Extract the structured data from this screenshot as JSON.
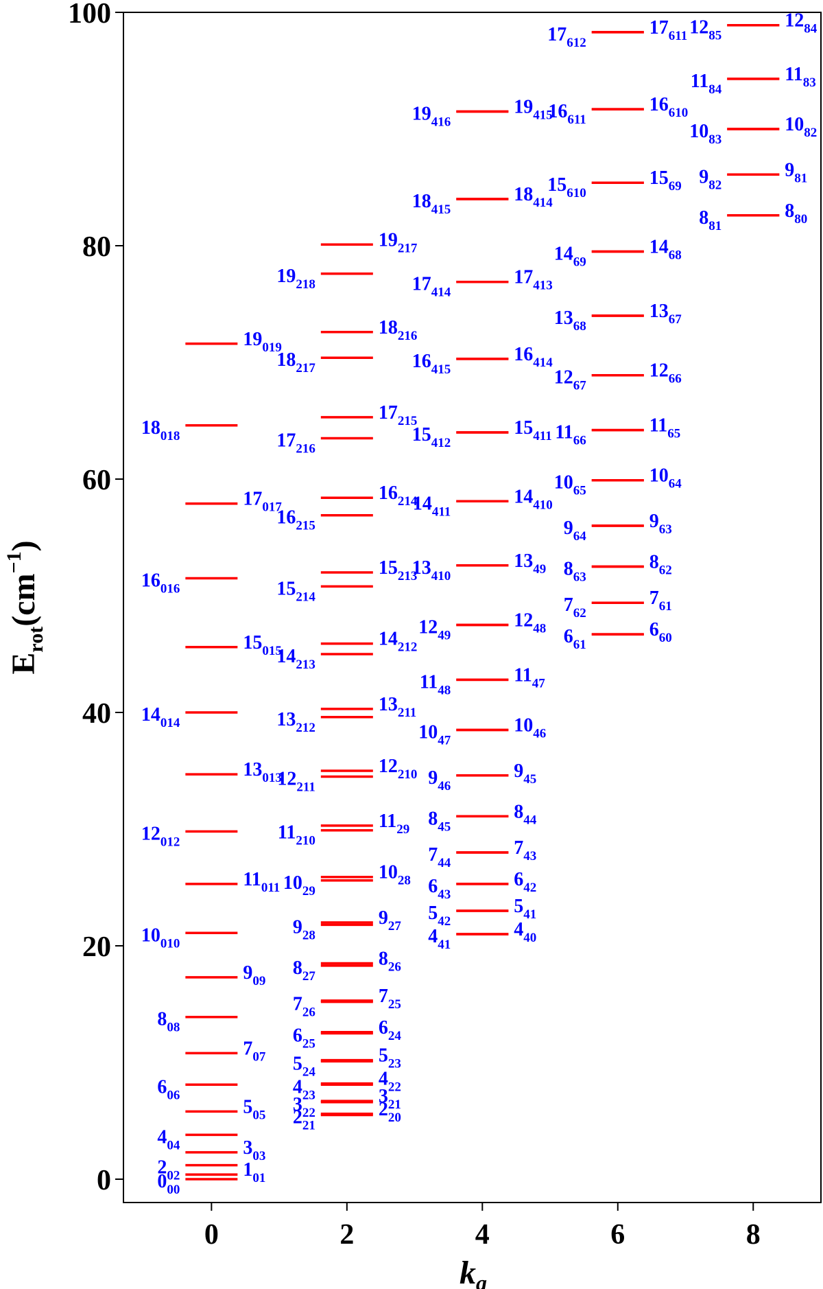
{
  "chart_data": {
    "type": "scatter",
    "xlabel": "k",
    "xlabel_sub": "a",
    "ylabel": "E",
    "ylabel_sub": "rot",
    "ylabel_units": "(cm",
    "ylabel_sup": "−1",
    "ylabel_close": ")",
    "xlim": [
      -1.3,
      9.0
    ],
    "ylim": [
      -2,
      100
    ],
    "xticks": [
      0,
      2,
      4,
      6,
      8
    ],
    "xtick_labels": [
      "0",
      "2",
      "4",
      "6",
      "8"
    ],
    "yticks": [
      0,
      20,
      40,
      60,
      80,
      100
    ],
    "ytick_labels": [
      "0",
      "20",
      "40",
      "60",
      "80",
      "100"
    ],
    "colors": {
      "level": "#ff0000",
      "label": "#0000ff",
      "axis": "#000000"
    },
    "levels": [
      {
        "x": 0,
        "E": 0.0,
        "J": "0",
        "sub": "00",
        "side": "left"
      },
      {
        "x": 0,
        "E": 0.4,
        "J": "1",
        "sub": "01",
        "side": "right"
      },
      {
        "x": 0,
        "E": 1.2,
        "J": "2",
        "sub": "02",
        "side": "left"
      },
      {
        "x": 0,
        "E": 2.3,
        "J": "3",
        "sub": "03",
        "side": "right"
      },
      {
        "x": 0,
        "E": 3.8,
        "J": "4",
        "sub": "04",
        "side": "left"
      },
      {
        "x": 0,
        "E": 5.8,
        "J": "5",
        "sub": "05",
        "side": "right"
      },
      {
        "x": 0,
        "E": 8.1,
        "J": "6",
        "sub": "06",
        "side": "left"
      },
      {
        "x": 0,
        "E": 10.8,
        "J": "7",
        "sub": "07",
        "side": "right"
      },
      {
        "x": 0,
        "E": 13.9,
        "J": "8",
        "sub": "08",
        "side": "left"
      },
      {
        "x": 0,
        "E": 17.3,
        "J": "9",
        "sub": "09",
        "side": "right"
      },
      {
        "x": 0,
        "E": 21.1,
        "J": "10",
        "sub": "010",
        "side": "left"
      },
      {
        "x": 0,
        "E": 25.3,
        "J": "11",
        "sub": "011",
        "side": "right"
      },
      {
        "x": 0,
        "E": 29.8,
        "J": "12",
        "sub": "012",
        "side": "left"
      },
      {
        "x": 0,
        "E": 34.7,
        "J": "13",
        "sub": "013",
        "side": "right"
      },
      {
        "x": 0,
        "E": 40.0,
        "J": "14",
        "sub": "014",
        "side": "left"
      },
      {
        "x": 0,
        "E": 45.6,
        "J": "15",
        "sub": "015",
        "side": "right"
      },
      {
        "x": 0,
        "E": 51.5,
        "J": "16",
        "sub": "016",
        "side": "left"
      },
      {
        "x": 0,
        "E": 57.9,
        "J": "17",
        "sub": "017",
        "side": "right"
      },
      {
        "x": 0,
        "E": 64.6,
        "J": "18",
        "sub": "018",
        "side": "left"
      },
      {
        "x": 0,
        "E": 71.6,
        "J": "19",
        "sub": "019",
        "side": "right"
      },
      {
        "x": 2,
        "E": 5.5,
        "J": "2",
        "sub": "21",
        "side": "left"
      },
      {
        "x": 2,
        "E": 5.6,
        "J": "2",
        "sub": "20",
        "side": "right"
      },
      {
        "x": 2,
        "E": 6.6,
        "J": "3",
        "sub": "22",
        "side": "left"
      },
      {
        "x": 2,
        "E": 6.7,
        "J": "3",
        "sub": "21",
        "side": "right"
      },
      {
        "x": 2,
        "E": 8.1,
        "J": "4",
        "sub": "23",
        "side": "left"
      },
      {
        "x": 2,
        "E": 8.2,
        "J": "4",
        "sub": "22",
        "side": "right"
      },
      {
        "x": 2,
        "E": 10.1,
        "J": "5",
        "sub": "24",
        "side": "left"
      },
      {
        "x": 2,
        "E": 10.2,
        "J": "5",
        "sub": "23",
        "side": "right"
      },
      {
        "x": 2,
        "E": 12.5,
        "J": "6",
        "sub": "25",
        "side": "left"
      },
      {
        "x": 2,
        "E": 12.6,
        "J": "6",
        "sub": "24",
        "side": "right"
      },
      {
        "x": 2,
        "E": 15.2,
        "J": "7",
        "sub": "26",
        "side": "left"
      },
      {
        "x": 2,
        "E": 15.3,
        "J": "7",
        "sub": "25",
        "side": "right"
      },
      {
        "x": 2,
        "E": 18.3,
        "J": "8",
        "sub": "27",
        "side": "left"
      },
      {
        "x": 2,
        "E": 18.5,
        "J": "8",
        "sub": "26",
        "side": "right"
      },
      {
        "x": 2,
        "E": 21.8,
        "J": "9",
        "sub": "28",
        "side": "left"
      },
      {
        "x": 2,
        "E": 22.0,
        "J": "9",
        "sub": "27",
        "side": "right"
      },
      {
        "x": 2,
        "E": 25.6,
        "J": "10",
        "sub": "29",
        "side": "left"
      },
      {
        "x": 2,
        "E": 25.9,
        "J": "10",
        "sub": "28",
        "side": "right"
      },
      {
        "x": 2,
        "E": 29.9,
        "J": "11",
        "sub": "210",
        "side": "left"
      },
      {
        "x": 2,
        "E": 30.3,
        "J": "11",
        "sub": "29",
        "side": "right"
      },
      {
        "x": 2,
        "E": 34.5,
        "J": "12",
        "sub": "211",
        "side": "left"
      },
      {
        "x": 2,
        "E": 35.0,
        "J": "12",
        "sub": "210",
        "side": "right"
      },
      {
        "x": 2,
        "E": 39.6,
        "J": "13",
        "sub": "212",
        "side": "left"
      },
      {
        "x": 2,
        "E": 40.3,
        "J": "13",
        "sub": "211",
        "side": "right"
      },
      {
        "x": 2,
        "E": 45.0,
        "J": "14",
        "sub": "213",
        "side": "left"
      },
      {
        "x": 2,
        "E": 45.9,
        "J": "14",
        "sub": "212",
        "side": "right"
      },
      {
        "x": 2,
        "E": 50.8,
        "J": "15",
        "sub": "214",
        "side": "left"
      },
      {
        "x": 2,
        "E": 52.0,
        "J": "15",
        "sub": "213",
        "side": "right"
      },
      {
        "x": 2,
        "E": 56.9,
        "J": "16",
        "sub": "215",
        "side": "left"
      },
      {
        "x": 2,
        "E": 58.4,
        "J": "16",
        "sub": "214",
        "side": "right"
      },
      {
        "x": 2,
        "E": 63.5,
        "J": "17",
        "sub": "216",
        "side": "left"
      },
      {
        "x": 2,
        "E": 65.3,
        "J": "17",
        "sub": "215",
        "side": "right"
      },
      {
        "x": 2,
        "E": 70.4,
        "J": "18",
        "sub": "217",
        "side": "left"
      },
      {
        "x": 2,
        "E": 72.6,
        "J": "18",
        "sub": "216",
        "side": "right"
      },
      {
        "x": 2,
        "E": 77.6,
        "J": "19",
        "sub": "218",
        "side": "left"
      },
      {
        "x": 2,
        "E": 80.1,
        "J": "19",
        "sub": "217",
        "side": "right"
      },
      {
        "x": 4,
        "E": 21.0,
        "J": "4",
        "sub": "41",
        "side": "left"
      },
      {
        "x": 4,
        "E": 21.0,
        "J": "4",
        "sub": "40",
        "side": "right"
      },
      {
        "x": 4,
        "E": 23.0,
        "J": "5",
        "sub": "42",
        "side": "left"
      },
      {
        "x": 4,
        "E": 23.0,
        "J": "5",
        "sub": "41",
        "side": "right"
      },
      {
        "x": 4,
        "E": 25.3,
        "J": "6",
        "sub": "43",
        "side": "left"
      },
      {
        "x": 4,
        "E": 25.3,
        "J": "6",
        "sub": "42",
        "side": "right"
      },
      {
        "x": 4,
        "E": 28.0,
        "J": "7",
        "sub": "44",
        "side": "left"
      },
      {
        "x": 4,
        "E": 28.0,
        "J": "7",
        "sub": "43",
        "side": "right"
      },
      {
        "x": 4,
        "E": 31.1,
        "J": "8",
        "sub": "45",
        "side": "left"
      },
      {
        "x": 4,
        "E": 31.1,
        "J": "8",
        "sub": "44",
        "side": "right"
      },
      {
        "x": 4,
        "E": 34.6,
        "J": "9",
        "sub": "46",
        "side": "left"
      },
      {
        "x": 4,
        "E": 34.6,
        "J": "9",
        "sub": "45",
        "side": "right"
      },
      {
        "x": 4,
        "E": 38.5,
        "J": "10",
        "sub": "47",
        "side": "left"
      },
      {
        "x": 4,
        "E": 38.5,
        "J": "10",
        "sub": "46",
        "side": "right"
      },
      {
        "x": 4,
        "E": 42.8,
        "J": "11",
        "sub": "48",
        "side": "left"
      },
      {
        "x": 4,
        "E": 42.8,
        "J": "11",
        "sub": "47",
        "side": "right"
      },
      {
        "x": 4,
        "E": 47.5,
        "J": "12",
        "sub": "49",
        "side": "left"
      },
      {
        "x": 4,
        "E": 47.5,
        "J": "12",
        "sub": "48",
        "side": "right"
      },
      {
        "x": 4,
        "E": 52.6,
        "J": "13",
        "sub": "410",
        "side": "left"
      },
      {
        "x": 4,
        "E": 52.6,
        "J": "13",
        "sub": "49",
        "side": "right"
      },
      {
        "x": 4,
        "E": 58.1,
        "J": "14",
        "sub": "411",
        "side": "left"
      },
      {
        "x": 4,
        "E": 58.1,
        "J": "14",
        "sub": "410",
        "side": "right"
      },
      {
        "x": 4,
        "E": 64.0,
        "J": "15",
        "sub": "412",
        "side": "left"
      },
      {
        "x": 4,
        "E": 64.0,
        "J": "15",
        "sub": "411",
        "side": "right"
      },
      {
        "x": 4,
        "E": 70.3,
        "J": "16",
        "sub": "415",
        "side": "left"
      },
      {
        "x": 4,
        "E": 70.3,
        "J": "16",
        "sub": "414",
        "side": "right"
      },
      {
        "x": 4,
        "E": 76.9,
        "J": "17",
        "sub": "414",
        "side": "left"
      },
      {
        "x": 4,
        "E": 76.9,
        "J": "17",
        "sub": "413",
        "side": "right"
      },
      {
        "x": 4,
        "E": 84.0,
        "J": "18",
        "sub": "415",
        "side": "left"
      },
      {
        "x": 4,
        "E": 84.0,
        "J": "18",
        "sub": "414",
        "side": "right"
      },
      {
        "x": 4,
        "E": 91.5,
        "J": "19",
        "sub": "416",
        "side": "left"
      },
      {
        "x": 4,
        "E": 91.5,
        "J": "19",
        "sub": "415",
        "side": "right"
      },
      {
        "x": 6,
        "E": 46.7,
        "J": "6",
        "sub": "61",
        "side": "left"
      },
      {
        "x": 6,
        "E": 46.7,
        "J": "6",
        "sub": "60",
        "side": "right"
      },
      {
        "x": 6,
        "E": 49.4,
        "J": "7",
        "sub": "62",
        "side": "left"
      },
      {
        "x": 6,
        "E": 49.4,
        "J": "7",
        "sub": "61",
        "side": "right"
      },
      {
        "x": 6,
        "E": 52.5,
        "J": "8",
        "sub": "63",
        "side": "left"
      },
      {
        "x": 6,
        "E": 52.5,
        "J": "8",
        "sub": "62",
        "side": "right"
      },
      {
        "x": 6,
        "E": 56.0,
        "J": "9",
        "sub": "64",
        "side": "left"
      },
      {
        "x": 6,
        "E": 56.0,
        "J": "9",
        "sub": "63",
        "side": "right"
      },
      {
        "x": 6,
        "E": 59.9,
        "J": "10",
        "sub": "65",
        "side": "left"
      },
      {
        "x": 6,
        "E": 59.9,
        "J": "10",
        "sub": "64",
        "side": "right"
      },
      {
        "x": 6,
        "E": 64.2,
        "J": "11",
        "sub": "66",
        "side": "left"
      },
      {
        "x": 6,
        "E": 64.2,
        "J": "11",
        "sub": "65",
        "side": "right"
      },
      {
        "x": 6,
        "E": 68.9,
        "J": "12",
        "sub": "67",
        "side": "left"
      },
      {
        "x": 6,
        "E": 68.9,
        "J": "12",
        "sub": "66",
        "side": "right"
      },
      {
        "x": 6,
        "E": 74.0,
        "J": "13",
        "sub": "68",
        "side": "left"
      },
      {
        "x": 6,
        "E": 74.0,
        "J": "13",
        "sub": "67",
        "side": "right"
      },
      {
        "x": 6,
        "E": 79.5,
        "J": "14",
        "sub": "69",
        "side": "left"
      },
      {
        "x": 6,
        "E": 79.5,
        "J": "14",
        "sub": "68",
        "side": "right"
      },
      {
        "x": 6,
        "E": 85.4,
        "J": "15",
        "sub": "610",
        "side": "left"
      },
      {
        "x": 6,
        "E": 85.4,
        "J": "15",
        "sub": "69",
        "side": "right"
      },
      {
        "x": 6,
        "E": 91.7,
        "J": "16",
        "sub": "611",
        "side": "left"
      },
      {
        "x": 6,
        "E": 91.7,
        "J": "16",
        "sub": "610",
        "side": "right"
      },
      {
        "x": 6,
        "E": 98.3,
        "J": "17",
        "sub": "612",
        "side": "left"
      },
      {
        "x": 6,
        "E": 98.3,
        "J": "17",
        "sub": "611",
        "side": "right"
      },
      {
        "x": 8,
        "E": 82.6,
        "J": "8",
        "sub": "81",
        "side": "left"
      },
      {
        "x": 8,
        "E": 82.6,
        "J": "8",
        "sub": "80",
        "side": "right"
      },
      {
        "x": 8,
        "E": 86.1,
        "J": "9",
        "sub": "82",
        "side": "left"
      },
      {
        "x": 8,
        "E": 86.1,
        "J": "9",
        "sub": "81",
        "side": "right"
      },
      {
        "x": 8,
        "E": 90.0,
        "J": "10",
        "sub": "83",
        "side": "left"
      },
      {
        "x": 8,
        "E": 90.0,
        "J": "10",
        "sub": "82",
        "side": "right"
      },
      {
        "x": 8,
        "E": 94.3,
        "J": "11",
        "sub": "84",
        "side": "left"
      },
      {
        "x": 8,
        "E": 94.3,
        "J": "11",
        "sub": "83",
        "side": "right"
      },
      {
        "x": 8,
        "E": 98.9,
        "J": "12",
        "sub": "85",
        "side": "left"
      },
      {
        "x": 8,
        "E": 98.9,
        "J": "12",
        "sub": "84",
        "side": "right"
      }
    ]
  }
}
